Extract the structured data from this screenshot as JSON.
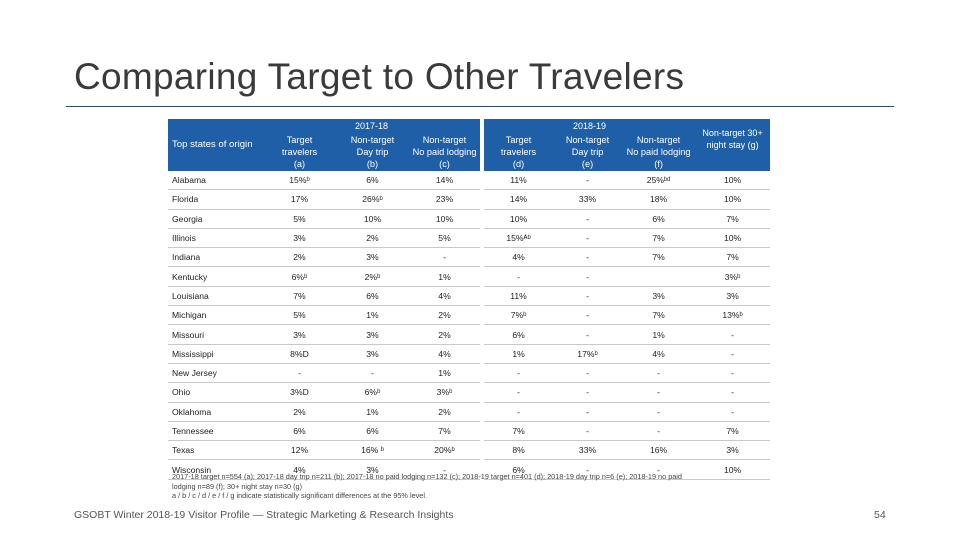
{
  "slide": {
    "title": "Comparing Target to Other Travelers",
    "footer": "GSOBT Winter 2018-19 Visitor Profile — Strategic Marketing & Research Insights",
    "page_number": "54"
  },
  "table": {
    "corner": "Top states of origin",
    "year_2017": "2017-18",
    "year_2018": "2018-19",
    "columns": [
      "Target\ntravelers\n(a)",
      "Non-target\nDay trip\n(b)",
      "Non-target\nNo paid lodging\n(c)",
      "Target\ntravelers\n(d)",
      "Non-target\nDay trip\n(e)",
      "Non-target\nNo paid lodging\n(f)",
      "Non-target 30+\nnight stay (g)"
    ],
    "rows": [
      {
        "state": "Alabama",
        "values": [
          "15%ᵇ",
          "6%",
          "14%",
          "11%",
          "-",
          "25%ᵇᵈ",
          "10%"
        ]
      },
      {
        "state": "Florida",
        "values": [
          "17%",
          "26%ᵇ",
          "23%",
          "14%",
          "33%",
          "18%",
          "10%"
        ]
      },
      {
        "state": "Georgia",
        "values": [
          "5%",
          "10%",
          "10%",
          "10%",
          "-",
          "6%",
          "7%"
        ]
      },
      {
        "state": "Illinois",
        "values": [
          "3%",
          "2%",
          "5%",
          "15%ᴬᵇ",
          "-",
          "7%",
          "10%"
        ]
      },
      {
        "state": "Indiana",
        "values": [
          "2%",
          "3%",
          "-",
          "4%",
          "-",
          "7%",
          "7%"
        ]
      },
      {
        "state": "Kentucky",
        "values": [
          "6%ᵇ",
          "2%ᵇ",
          "1%",
          "-",
          "-",
          "",
          "3%ᵇ"
        ]
      },
      {
        "state": "Louisiana",
        "values": [
          "7%",
          "6%",
          "4%",
          "11%",
          "-",
          "3%",
          "3%"
        ]
      },
      {
        "state": "Michigan",
        "values": [
          "5%",
          "1%",
          "2%",
          "7%ᵇ",
          "-",
          "7%",
          "13%ᵇ"
        ]
      },
      {
        "state": "Missouri",
        "values": [
          "3%",
          "3%",
          "2%",
          "6%",
          "-",
          "1%",
          "-"
        ]
      },
      {
        "state": "Mississippi",
        "values": [
          "8%D",
          "3%",
          "4%",
          "1%",
          "17%ᵇ",
          "4%",
          "-"
        ]
      },
      {
        "state": "New Jersey",
        "values": [
          "-",
          "-",
          "1%",
          "-",
          "-",
          "-",
          "-"
        ]
      },
      {
        "state": "Ohio",
        "values": [
          "3%D",
          "6%ᵇ",
          "3%ᵇ",
          "-",
          "-",
          "-",
          "-"
        ]
      },
      {
        "state": "Oklahoma",
        "values": [
          "2%",
          "1%",
          "2%",
          "-",
          "-",
          "-",
          "-"
        ]
      },
      {
        "state": "Tennessee",
        "values": [
          "6%",
          "6%",
          "7%",
          "7%",
          "-",
          "-",
          "7%"
        ]
      },
      {
        "state": "Texas",
        "values": [
          "12%",
          "16% ᵇ",
          "20%ᵇ",
          "8%",
          "33%",
          "16%",
          "3%"
        ]
      },
      {
        "state": "Wisconsin",
        "values": [
          "4%",
          "3%",
          "-",
          "6%",
          "-",
          "-",
          "10%"
        ]
      }
    ]
  },
  "notes": [
    "2017-18 target n=554 (a); 2017-18 day trip n=211 (b); 2017-18 no paid lodging n=132 (c); 2018-19 target n=401 (d); 2018-19 day trip n=6 (e); 2018-19 no paid",
    "lodging n=89 (f); 30+ night stay n=30 (g)",
    "a / b / c / d / e / f / g indicate statistically significant differences at the 95% level."
  ],
  "colors": {
    "header_blue": "#1f5fa8",
    "rule": "#2e4a6b"
  }
}
